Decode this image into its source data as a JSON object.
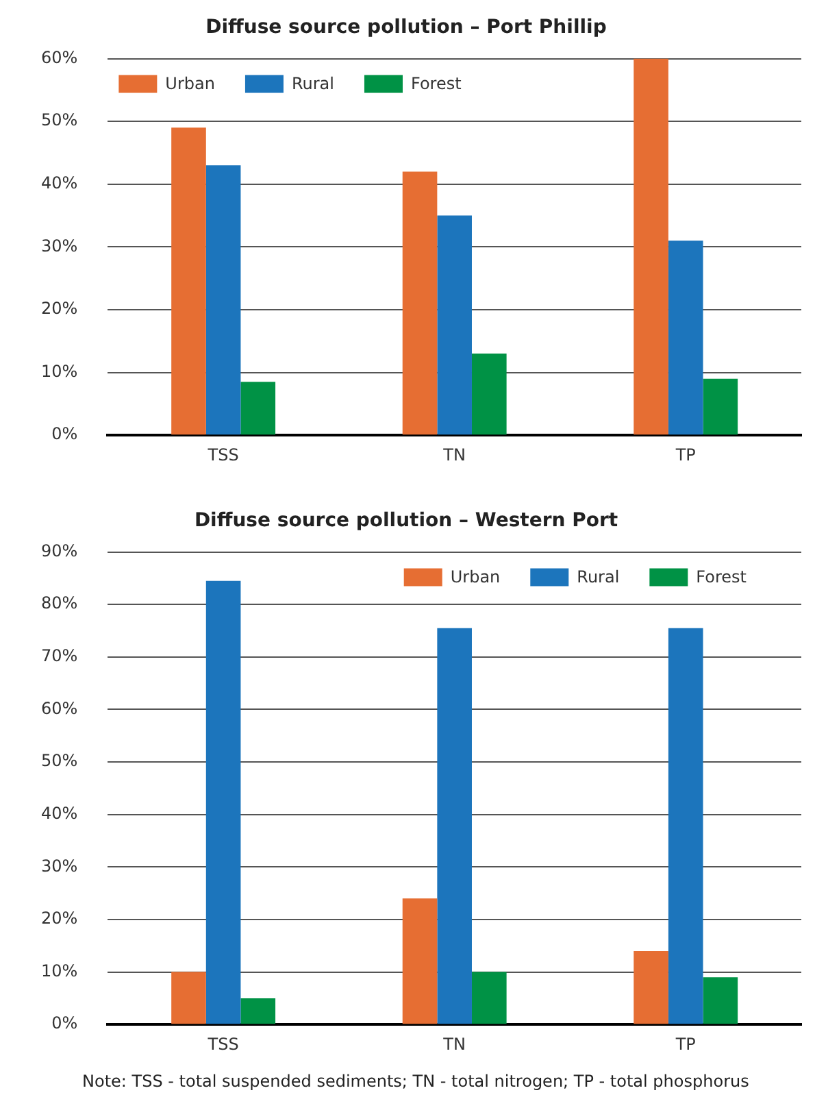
{
  "chart_data": [
    {
      "type": "bar",
      "title": "Diffuse source pollution – Port Phillip",
      "categories": [
        "TSS",
        "TN",
        "TP"
      ],
      "series": [
        {
          "name": "Urban",
          "color": "#e66e33",
          "values": [
            49,
            42,
            60
          ]
        },
        {
          "name": "Rural",
          "color": "#1c75bc",
          "values": [
            43,
            35,
            31
          ]
        },
        {
          "name": "Forest",
          "color": "#009245",
          "values": [
            8.5,
            13,
            9
          ]
        }
      ],
      "ylim": [
        0,
        60
      ],
      "yticks": [
        {
          "value": 0,
          "label": "0%"
        },
        {
          "value": 10,
          "label": "10%"
        },
        {
          "value": 20,
          "label": "20%"
        },
        {
          "value": 30,
          "label": "30%"
        },
        {
          "value": 40,
          "label": "40%"
        },
        {
          "value": 50,
          "label": "50%"
        },
        {
          "value": 60,
          "label": "60%"
        }
      ],
      "grid": "y",
      "legend": "top left"
    },
    {
      "type": "bar",
      "title": "Diffuse source pollution – Western Port",
      "categories": [
        "TSS",
        "TN",
        "TP"
      ],
      "series": [
        {
          "name": "Urban",
          "color": "#e66e33",
          "values": [
            10,
            24,
            14
          ]
        },
        {
          "name": "Rural",
          "color": "#1c75bc",
          "values": [
            84.5,
            75.5,
            75.5
          ]
        },
        {
          "name": "Forest",
          "color": "#009245",
          "values": [
            5,
            10,
            9
          ]
        }
      ],
      "ylim": [
        0,
        90
      ],
      "yticks": [
        {
          "value": 0,
          "label": "0%"
        },
        {
          "value": 10,
          "label": "10%"
        },
        {
          "value": 20,
          "label": "20%"
        },
        {
          "value": 30,
          "label": "30%"
        },
        {
          "value": 40,
          "label": "40%"
        },
        {
          "value": 50,
          "label": "50%"
        },
        {
          "value": 60,
          "label": "60%"
        },
        {
          "value": 70,
          "label": "70%"
        },
        {
          "value": 80,
          "label": "80%"
        },
        {
          "value": 90,
          "label": "90%"
        }
      ],
      "grid": "y",
      "legend": "top right",
      "annotations": [
        "Note: TSS - total suspended sediments; TN - total nitrogen; TP - total phosphorus"
      ]
    }
  ]
}
